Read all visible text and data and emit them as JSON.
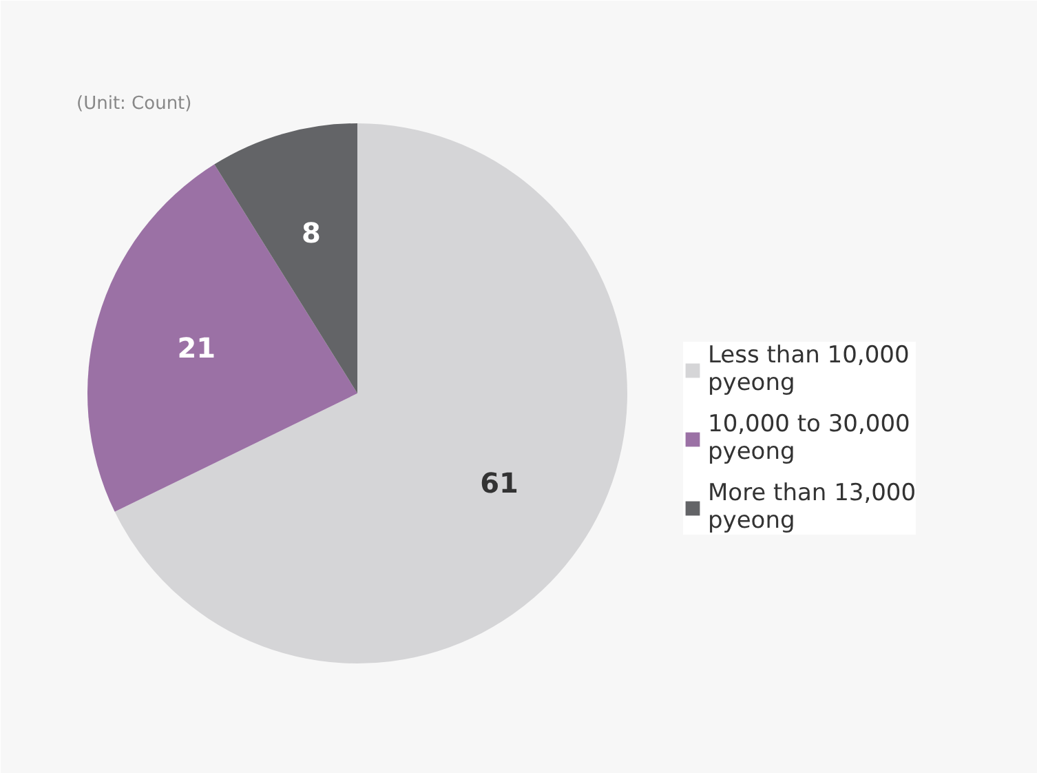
{
  "chart_data": {
    "type": "pie",
    "annotations": [
      "(Unit: Count)"
    ],
    "categories": [
      "Less than 10,000 pyeong",
      "10,000 to 30,000 pyeong",
      "More than 13,000 pyeong"
    ],
    "values": [
      61,
      21,
      8
    ],
    "colors": [
      "#d5d5d7",
      "#9b71a5",
      "#636467"
    ],
    "data_labels": true,
    "legend": "right"
  }
}
